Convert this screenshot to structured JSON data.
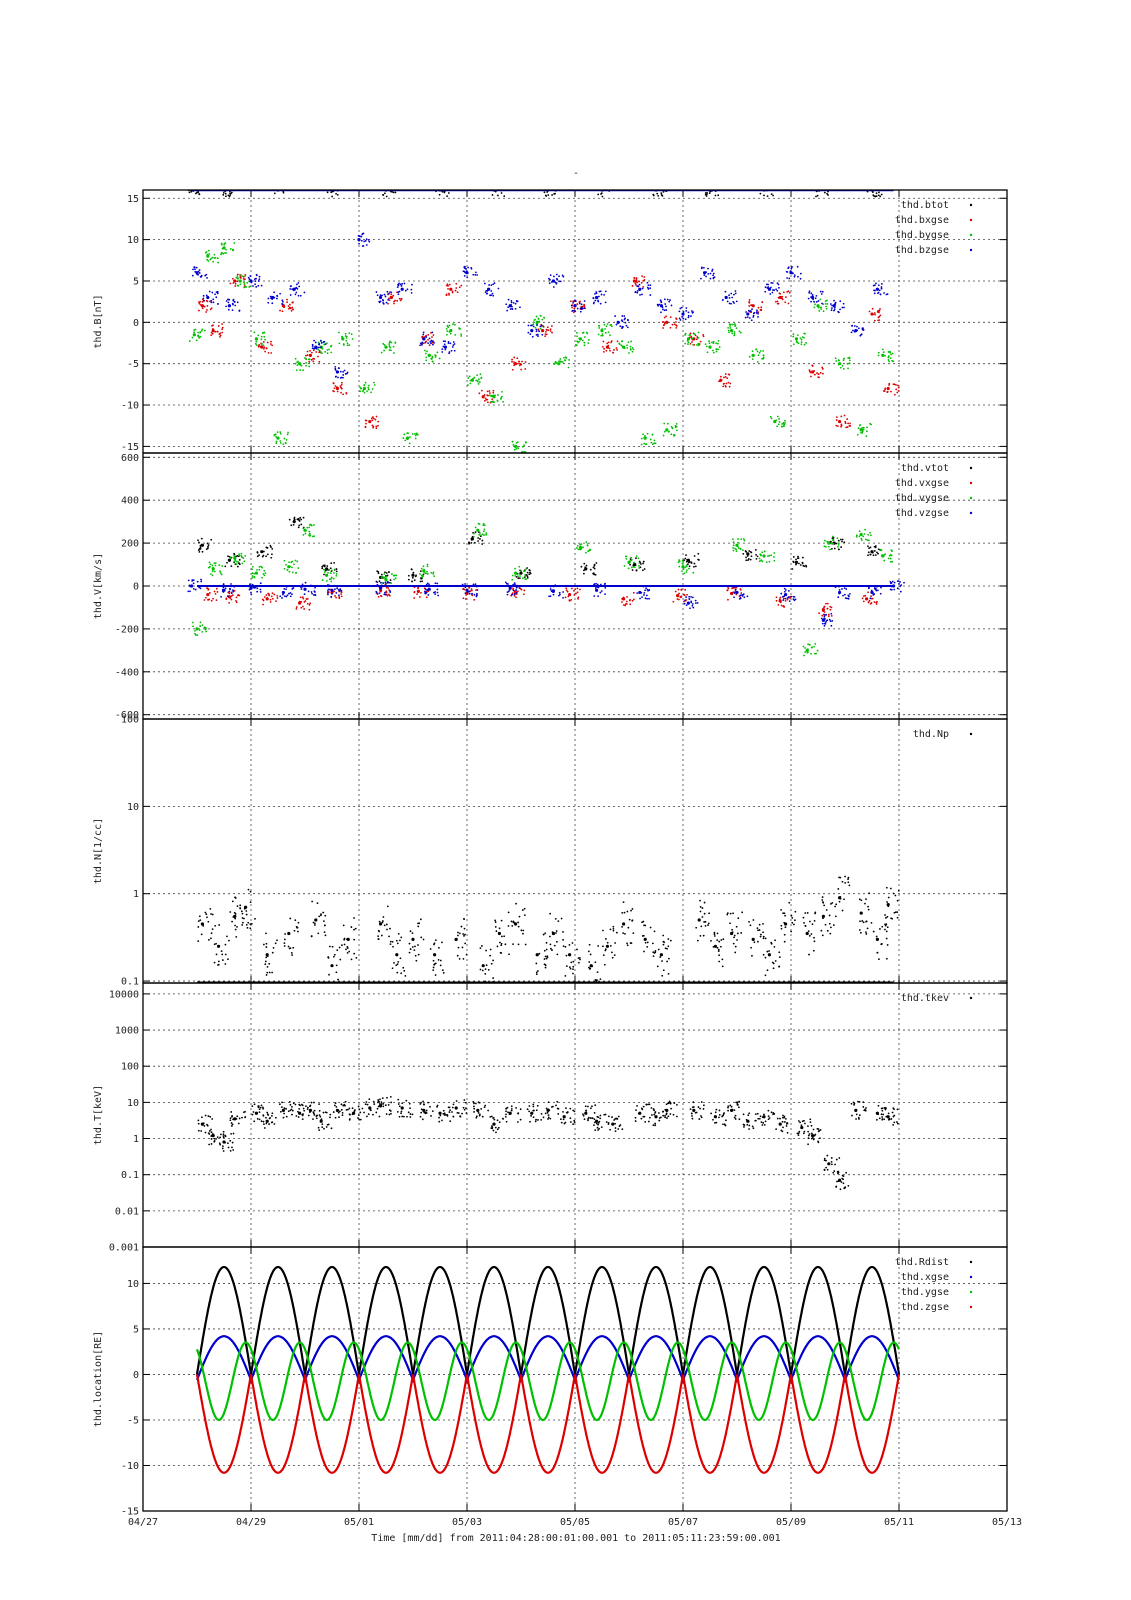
{
  "figure": {
    "top_title": "-",
    "xlabel": "Time [mm/dd]  from 2011:04:28:00:01:00.001  to  2011:05:11:23:59:00.001",
    "x_ticks": [
      "04/27",
      "04/29",
      "05/01",
      "05/03",
      "05/05",
      "05/07",
      "05/09",
      "05/11",
      "05/13"
    ],
    "x_tick_days": [
      0,
      2,
      4,
      6,
      8,
      10,
      12,
      14,
      16
    ],
    "x_range_days": [
      0,
      16
    ],
    "x_origin_date": "04/27",
    "colors": {
      "black": "#000000",
      "red": "#dd0000",
      "green": "#00c000",
      "blue": "#0000cc"
    }
  },
  "chart_data": [
    {
      "type": "scatter",
      "id": "B",
      "ylabel": "thd.B[nT]",
      "ylim": [
        -15.8,
        16
      ],
      "yscale": "linear",
      "y_ticks": [
        15,
        10,
        5,
        0,
        -5,
        -10,
        -15
      ],
      "y_tick_labels": [
        "15",
        "10",
        "5",
        "0",
        "-5",
        "-10",
        "-15"
      ],
      "grid": true,
      "legend_position": "top-right",
      "series": [
        {
          "name": "thd.btot",
          "color": "#000000",
          "x": [
            0.9,
            1.5,
            2.5,
            3.5,
            4.5,
            5.5,
            6.5,
            7.5,
            8.5,
            9.5,
            10.5,
            11.5,
            12.5,
            13.5
          ],
          "y": [
            16,
            16,
            16,
            16,
            16,
            16,
            16,
            16,
            16,
            16,
            16,
            16,
            16,
            16
          ]
        },
        {
          "name": "thd.bxgse",
          "color": "#dd0000",
          "x": [
            1.1,
            1.3,
            1.7,
            2.2,
            2.6,
            3.1,
            3.6,
            4.2,
            4.6,
            5.2,
            5.7,
            6.3,
            6.9,
            7.4,
            8.0,
            8.6,
            9.1,
            9.7,
            10.2,
            10.7,
            11.3,
            11.8,
            12.4,
            12.9,
            13.5,
            13.8
          ],
          "y": [
            2,
            -1,
            5,
            -3,
            2,
            -4,
            -8,
            -12,
            3,
            -2,
            4,
            -9,
            -5,
            -1,
            2,
            -3,
            5,
            0,
            -2,
            -7,
            2,
            3,
            -6,
            -12,
            1,
            -8
          ]
        },
        {
          "name": "thd.bygse",
          "color": "#00c000",
          "x": [
            0.95,
            1.2,
            1.5,
            1.8,
            2.1,
            2.5,
            2.9,
            3.3,
            3.7,
            4.1,
            4.5,
            4.9,
            5.3,
            5.7,
            6.1,
            6.5,
            6.9,
            7.3,
            7.7,
            8.1,
            8.5,
            8.9,
            9.3,
            9.7,
            10.1,
            10.5,
            10.9,
            11.3,
            11.7,
            12.1,
            12.5,
            12.9,
            13.3,
            13.7
          ],
          "y": [
            -1.5,
            8,
            9,
            5,
            -2,
            -14,
            -5,
            -3,
            -2,
            -8,
            -3,
            -14,
            -4,
            -1,
            -7,
            -9,
            -15,
            0,
            -5,
            -2,
            -1,
            -3,
            -14,
            -13,
            -2,
            -3,
            -1,
            -4,
            -12,
            -2,
            2,
            -5,
            -13,
            -4
          ]
        },
        {
          "name": "thd.bzgse",
          "color": "#0000cc",
          "x": [
            1.0,
            1.2,
            1.6,
            2.0,
            2.4,
            2.8,
            3.2,
            3.6,
            4.0,
            4.4,
            4.8,
            5.2,
            5.6,
            6.0,
            6.4,
            6.8,
            7.2,
            7.6,
            8.0,
            8.4,
            8.8,
            9.2,
            9.6,
            10.0,
            10.4,
            10.8,
            11.2,
            11.6,
            12.0,
            12.4,
            12.8,
            13.2,
            13.6
          ],
          "y": [
            6,
            3,
            2,
            5,
            3,
            4,
            -3,
            -6,
            10,
            3,
            4,
            -2,
            -3,
            6,
            4,
            2,
            -1,
            5,
            2,
            3,
            0,
            4,
            2,
            1,
            6,
            3,
            1,
            4,
            6,
            3,
            2,
            -1,
            4
          ]
        }
      ]
    },
    {
      "type": "scatter",
      "id": "V",
      "ylabel": "thd.V[km/s]",
      "ylim": [
        -620,
        620
      ],
      "yscale": "linear",
      "y_ticks": [
        600,
        400,
        200,
        0,
        -200,
        -400,
        -600
      ],
      "y_tick_labels": [
        "600",
        "400",
        "200",
        "0",
        "-200",
        "-400",
        "-600"
      ],
      "grid": true,
      "legend_position": "top-right",
      "series": [
        {
          "name": "thd.vtot",
          "color": "#000000",
          "x": [
            1.1,
            1.6,
            2.2,
            2.8,
            3.4,
            4.4,
            5.0,
            6.1,
            7.0,
            8.2,
            9.1,
            10.1,
            11.2,
            12.1,
            12.8,
            13.5
          ],
          "y": [
            190,
            120,
            160,
            300,
            80,
            40,
            50,
            220,
            60,
            80,
            100,
            120,
            150,
            110,
            200,
            160
          ]
        },
        {
          "name": "thd.vxgse",
          "color": "#dd0000",
          "x": [
            1.2,
            1.6,
            2.3,
            2.9,
            3.5,
            4.4,
            5.1,
            6.0,
            6.9,
            7.9,
            8.9,
            9.9,
            10.9,
            11.8,
            12.6,
            13.4
          ],
          "y": [
            -40,
            -50,
            -60,
            -80,
            -30,
            -20,
            -25,
            -35,
            -30,
            -40,
            -60,
            -45,
            -35,
            -70,
            -110,
            -60
          ]
        },
        {
          "name": "thd.vygse",
          "color": "#00c000",
          "x": [
            1.0,
            1.3,
            1.7,
            2.1,
            2.7,
            3.0,
            3.4,
            4.5,
            5.2,
            6.2,
            6.9,
            8.1,
            9.0,
            10.0,
            11.0,
            11.5,
            12.3,
            12.7,
            13.3,
            13.7
          ],
          "y": [
            -200,
            80,
            130,
            60,
            90,
            260,
            50,
            30,
            70,
            260,
            60,
            180,
            110,
            90,
            190,
            140,
            -300,
            200,
            240,
            140
          ]
        },
        {
          "name": "thd.vzgse",
          "color": "#0000cc",
          "x": [
            0.9,
            1.5,
            2.0,
            2.6,
            3.0,
            3.5,
            4.4,
            5.3,
            6.0,
            6.8,
            7.6,
            8.4,
            9.2,
            10.1,
            11.0,
            11.9,
            12.6,
            12.9,
            13.5,
            13.9
          ],
          "y": [
            0,
            -20,
            -10,
            -30,
            -15,
            -20,
            -10,
            -15,
            -20,
            -10,
            -25,
            -20,
            -30,
            -80,
            -30,
            -40,
            -160,
            -30,
            -30,
            0
          ]
        }
      ]
    },
    {
      "type": "scatter",
      "id": "N",
      "ylabel": "thd.N[1/cc]",
      "ylim": [
        0.095,
        100
      ],
      "yscale": "log",
      "y_ticks": [
        100,
        10,
        1,
        0.1
      ],
      "y_tick_labels": [
        "100",
        "10",
        "1",
        "0.1"
      ],
      "grid": true,
      "legend_position": "top-right",
      "series": [
        {
          "name": "thd.Np",
          "color": "#000000",
          "x": [
            1.1,
            1.4,
            1.7,
            1.9,
            2.3,
            2.7,
            3.2,
            3.5,
            3.8,
            4.4,
            4.7,
            5.0,
            5.4,
            5.8,
            6.3,
            6.6,
            6.9,
            7.3,
            7.6,
            7.9,
            8.3,
            8.6,
            8.9,
            9.3,
            9.6,
            10.3,
            10.6,
            10.9,
            11.3,
            11.6,
            11.9,
            12.3,
            12.6,
            12.9,
            13.3,
            13.6,
            13.8
          ],
          "y": [
            0.45,
            0.25,
            0.55,
            0.7,
            0.2,
            0.35,
            0.5,
            0.15,
            0.3,
            0.45,
            0.2,
            0.3,
            0.2,
            0.3,
            0.15,
            0.35,
            0.45,
            0.2,
            0.35,
            0.2,
            0.15,
            0.25,
            0.45,
            0.3,
            0.2,
            0.5,
            0.25,
            0.35,
            0.3,
            0.2,
            0.45,
            0.35,
            0.55,
            0.9,
            0.6,
            0.3,
            0.75
          ]
        }
      ]
    },
    {
      "type": "scatter",
      "id": "T",
      "ylabel": "thd.T[keV]",
      "ylim": [
        0.001,
        20000
      ],
      "yscale": "log",
      "y_ticks": [
        10000,
        1000,
        100,
        10,
        1,
        0.1,
        0.01,
        0.001
      ],
      "y_tick_labels": [
        "10000",
        "1000",
        "100",
        "10",
        "1",
        "0.1",
        "0.01",
        "0.001"
      ],
      "grid": true,
      "legend_position": "top-right",
      "series": [
        {
          "name": "thd.tkev",
          "color": "#000000",
          "x": [
            1.1,
            1.3,
            1.5,
            1.7,
            2.1,
            2.3,
            2.6,
            2.9,
            3.1,
            3.3,
            3.6,
            3.9,
            4.2,
            4.4,
            4.8,
            5.2,
            5.5,
            5.8,
            6.2,
            6.5,
            6.8,
            7.2,
            7.5,
            7.8,
            8.2,
            8.4,
            8.7,
            9.2,
            9.5,
            9.7,
            10.2,
            10.6,
            10.9,
            11.2,
            11.5,
            11.8,
            12.2,
            12.4,
            12.7,
            12.9,
            13.2,
            13.6,
            13.8
          ],
          "y": [
            2.5,
            1.2,
            0.8,
            3.5,
            5,
            3,
            6,
            5,
            6,
            3,
            6,
            5,
            7,
            8,
            7,
            6,
            5,
            7,
            6,
            2.5,
            5,
            5,
            6,
            4,
            5,
            3,
            2.5,
            5,
            4,
            6,
            6,
            4,
            6,
            3,
            4,
            2.5,
            2,
            1.2,
            0.2,
            0.07,
            6,
            5,
            4
          ]
        }
      ]
    },
    {
      "type": "line",
      "id": "loc",
      "ylabel": "thd.location[RE]",
      "ylim": [
        -15,
        14
      ],
      "yscale": "linear",
      "y_ticks": [
        10,
        5,
        0,
        -5,
        -10,
        -15
      ],
      "y_tick_labels": [
        "10",
        "5",
        "0",
        "-5",
        "-10",
        "-15"
      ],
      "grid": true,
      "legend_position": "top-right",
      "x_range": [
        1.0,
        14.0
      ],
      "orbit_period_days": 1.0,
      "perigee_phase_day": 1.0,
      "series": [
        {
          "name": "thd.Rdist",
          "color": "#000000",
          "amplitude_max": 11.8,
          "amplitude_min": 0.0
        },
        {
          "name": "thd.xgse",
          "color": "#0000cc",
          "amplitude_max": 4.2,
          "amplitude_min": -0.6
        },
        {
          "name": "thd.ygse",
          "color": "#00c000",
          "amplitude_max": 3.5,
          "amplitude_min": -5.0
        },
        {
          "name": "thd.zgse",
          "color": "#dd0000",
          "amplitude_max": 0.0,
          "amplitude_min": -10.8
        }
      ]
    }
  ]
}
